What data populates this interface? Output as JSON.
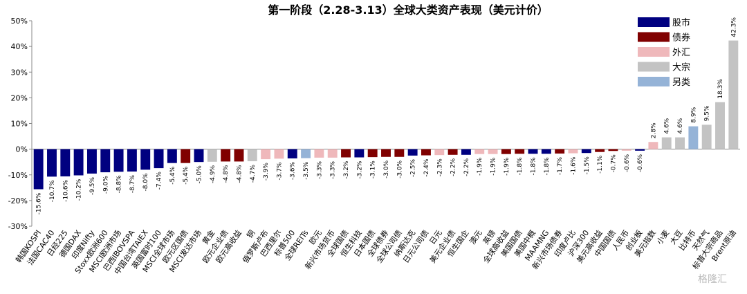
{
  "chart_data": {
    "type": "bar",
    "title": "第一阶段（2.28-3.13）全球大类资产表现（美元计价）",
    "watermark": "格隆汇",
    "categories": [
      "韩国KOSPI",
      "法国CAC40",
      "日经225",
      "德国DAX",
      "印度Nifty",
      "Stoxx欧洲600",
      "MSCI欧洲市场",
      "巴西IBOVSPA",
      "中国台湾TAIEX",
      "英国富时100",
      "MSCI全球市场",
      "欧元区国债",
      "MSCI发达市场",
      "黄金",
      "欧元企业债",
      "欧元高收益",
      "铜",
      "俄罗斯卢布",
      "巴西里尔",
      "标普500",
      "全球REITs",
      "欧元",
      "新兴市场货币",
      "全球国债",
      "恒生科技",
      "日本国债",
      "全球债券",
      "全球公司债",
      "纳斯达克",
      "日元公司债",
      "日元",
      "美元企业债",
      "恒生国企",
      "澳元",
      "英镑",
      "全球高收益",
      "美国国债",
      "美国中概",
      "MAAMNG",
      "新兴市场债券",
      "印度卢比",
      "沪深300",
      "美元高收益",
      "中国国债",
      "人民币",
      "创业板",
      "美元指数",
      "小麦",
      "大豆",
      "比特币",
      "天然气",
      "标普大宗商品",
      "Brent原油"
    ],
    "series": [
      {
        "name": "股市",
        "color": "#000080",
        "values": [
          -15.6,
          -10.7,
          -10.6,
          -10.2,
          -9.5,
          -9.0,
          -8.8,
          -8.7,
          -8.0,
          -7.4,
          -5.4,
          null,
          -5.0,
          null,
          null,
          null,
          null,
          null,
          null,
          -3.6,
          null,
          null,
          null,
          null,
          -3.2,
          null,
          null,
          null,
          -2.5,
          null,
          null,
          null,
          -2.2,
          null,
          null,
          null,
          null,
          -1.8,
          -1.8,
          null,
          null,
          -1.5,
          null,
          null,
          null,
          -0.6,
          null,
          null,
          null,
          null,
          null,
          null,
          null
        ],
        "value_labels": [
          "-15.6%",
          "-10.7%",
          "-10.6%",
          "-10.2%",
          "-9.5%",
          "-9.0%",
          "-8.8%",
          "-8.7%",
          "-8.0%",
          "-7.4%",
          "-5.4%",
          null,
          "-5.0%",
          null,
          null,
          null,
          null,
          null,
          null,
          "-3.6%",
          null,
          null,
          null,
          null,
          "-3.2%",
          null,
          null,
          null,
          "-2.5%",
          null,
          null,
          null,
          "-2.2%",
          null,
          null,
          null,
          null,
          "-1.8%",
          "-1.8%",
          null,
          null,
          "-1.5%",
          null,
          null,
          null,
          "-0.6%",
          null,
          null,
          null,
          null,
          null,
          null,
          null
        ]
      },
      {
        "name": "债券",
        "color": "#800000",
        "values": [
          null,
          null,
          null,
          null,
          null,
          null,
          null,
          null,
          null,
          null,
          null,
          -5.4,
          null,
          null,
          -4.8,
          -4.8,
          null,
          null,
          null,
          null,
          null,
          null,
          null,
          -3.2,
          null,
          -3.1,
          -3.0,
          -3.0,
          null,
          -2.4,
          null,
          -2.2,
          null,
          null,
          null,
          -1.9,
          -1.8,
          null,
          null,
          -1.7,
          null,
          null,
          -1.1,
          -0.7,
          null,
          null,
          null,
          null,
          null,
          null,
          null,
          null,
          null
        ],
        "value_labels": [
          null,
          null,
          null,
          null,
          null,
          null,
          null,
          null,
          null,
          null,
          null,
          "-5.4%",
          null,
          null,
          "-4.8%",
          "-4.8%",
          null,
          null,
          null,
          null,
          null,
          null,
          null,
          "-3.2%",
          null,
          "-3.1%",
          "-3.0%",
          "-3.0%",
          null,
          "-2.4%",
          null,
          "-2.2%",
          null,
          null,
          null,
          "-1.9%",
          "-1.8%",
          null,
          null,
          "-1.7%",
          null,
          null,
          "-1.1%",
          "-0.7%",
          null,
          null,
          null,
          null,
          null,
          null,
          null,
          null,
          null
        ]
      },
      {
        "name": "外汇",
        "color": "#efb8bb",
        "values": [
          null,
          null,
          null,
          null,
          null,
          null,
          null,
          null,
          null,
          null,
          null,
          null,
          null,
          null,
          null,
          null,
          null,
          -3.9,
          -3.7,
          null,
          null,
          -3.3,
          -3.3,
          null,
          null,
          null,
          null,
          null,
          null,
          null,
          -2.3,
          null,
          null,
          -1.9,
          -1.9,
          null,
          null,
          null,
          null,
          null,
          -1.6,
          null,
          null,
          null,
          -0.6,
          null,
          2.8,
          null,
          null,
          null,
          null,
          null,
          null
        ],
        "value_labels": [
          null,
          null,
          null,
          null,
          null,
          null,
          null,
          null,
          null,
          null,
          null,
          null,
          null,
          null,
          null,
          null,
          null,
          "-3.9%",
          "-3.7%",
          null,
          null,
          "-3.3%",
          "-3.3%",
          null,
          null,
          null,
          null,
          null,
          null,
          null,
          "-2.3%",
          null,
          null,
          "-1.9%",
          "-1.9%",
          null,
          null,
          null,
          null,
          null,
          "-1.6%",
          null,
          null,
          null,
          "-0.6%",
          null,
          "2.8%",
          null,
          null,
          null,
          null,
          null,
          null
        ]
      },
      {
        "name": "大宗",
        "color": "#c3c3c3",
        "values": [
          null,
          null,
          null,
          null,
          null,
          null,
          null,
          null,
          null,
          null,
          null,
          null,
          null,
          -4.9,
          null,
          null,
          -4.7,
          null,
          null,
          null,
          null,
          null,
          null,
          null,
          null,
          null,
          null,
          null,
          null,
          null,
          null,
          null,
          null,
          null,
          null,
          null,
          null,
          null,
          null,
          null,
          null,
          null,
          null,
          null,
          null,
          null,
          null,
          4.6,
          4.6,
          null,
          9.5,
          18.3,
          42.3
        ],
        "value_labels": [
          null,
          null,
          null,
          null,
          null,
          null,
          null,
          null,
          null,
          null,
          null,
          null,
          null,
          "-4.9%",
          null,
          null,
          "-4.7%",
          null,
          null,
          null,
          null,
          null,
          null,
          null,
          null,
          null,
          null,
          null,
          null,
          null,
          null,
          null,
          null,
          null,
          null,
          null,
          null,
          null,
          null,
          null,
          null,
          null,
          null,
          null,
          null,
          null,
          null,
          "4.6%",
          "4.6%",
          null,
          "9.5%",
          "18.3%",
          "42.3%"
        ]
      },
      {
        "name": "另类",
        "color": "#95b3d7",
        "values": [
          null,
          null,
          null,
          null,
          null,
          null,
          null,
          null,
          null,
          null,
          null,
          null,
          null,
          null,
          null,
          null,
          null,
          null,
          null,
          null,
          -3.5,
          null,
          null,
          null,
          null,
          null,
          null,
          null,
          null,
          null,
          null,
          null,
          null,
          null,
          null,
          null,
          null,
          null,
          null,
          null,
          null,
          null,
          null,
          null,
          null,
          null,
          null,
          null,
          null,
          8.9,
          null,
          null,
          null
        ],
        "value_labels": [
          null,
          null,
          null,
          null,
          null,
          null,
          null,
          null,
          null,
          null,
          null,
          null,
          null,
          null,
          null,
          null,
          null,
          null,
          null,
          null,
          "-3.5%",
          null,
          null,
          null,
          null,
          null,
          null,
          null,
          null,
          null,
          null,
          null,
          null,
          null,
          null,
          null,
          null,
          null,
          null,
          null,
          null,
          null,
          null,
          null,
          null,
          null,
          null,
          null,
          null,
          "8.9%",
          null,
          null,
          null
        ]
      }
    ],
    "ylim": [
      -30,
      50
    ],
    "yticks": [
      {
        "value": -30,
        "label": "-30%"
      },
      {
        "value": -20,
        "label": "-20%"
      },
      {
        "value": -10,
        "label": "-10%"
      },
      {
        "value": 0,
        "label": "0%"
      },
      {
        "value": 10,
        "label": "10%"
      },
      {
        "value": 20,
        "label": "20%"
      },
      {
        "value": 30,
        "label": "30%"
      },
      {
        "value": 40,
        "label": "40%"
      },
      {
        "value": 50,
        "label": "50%"
      }
    ],
    "grid": false
  }
}
